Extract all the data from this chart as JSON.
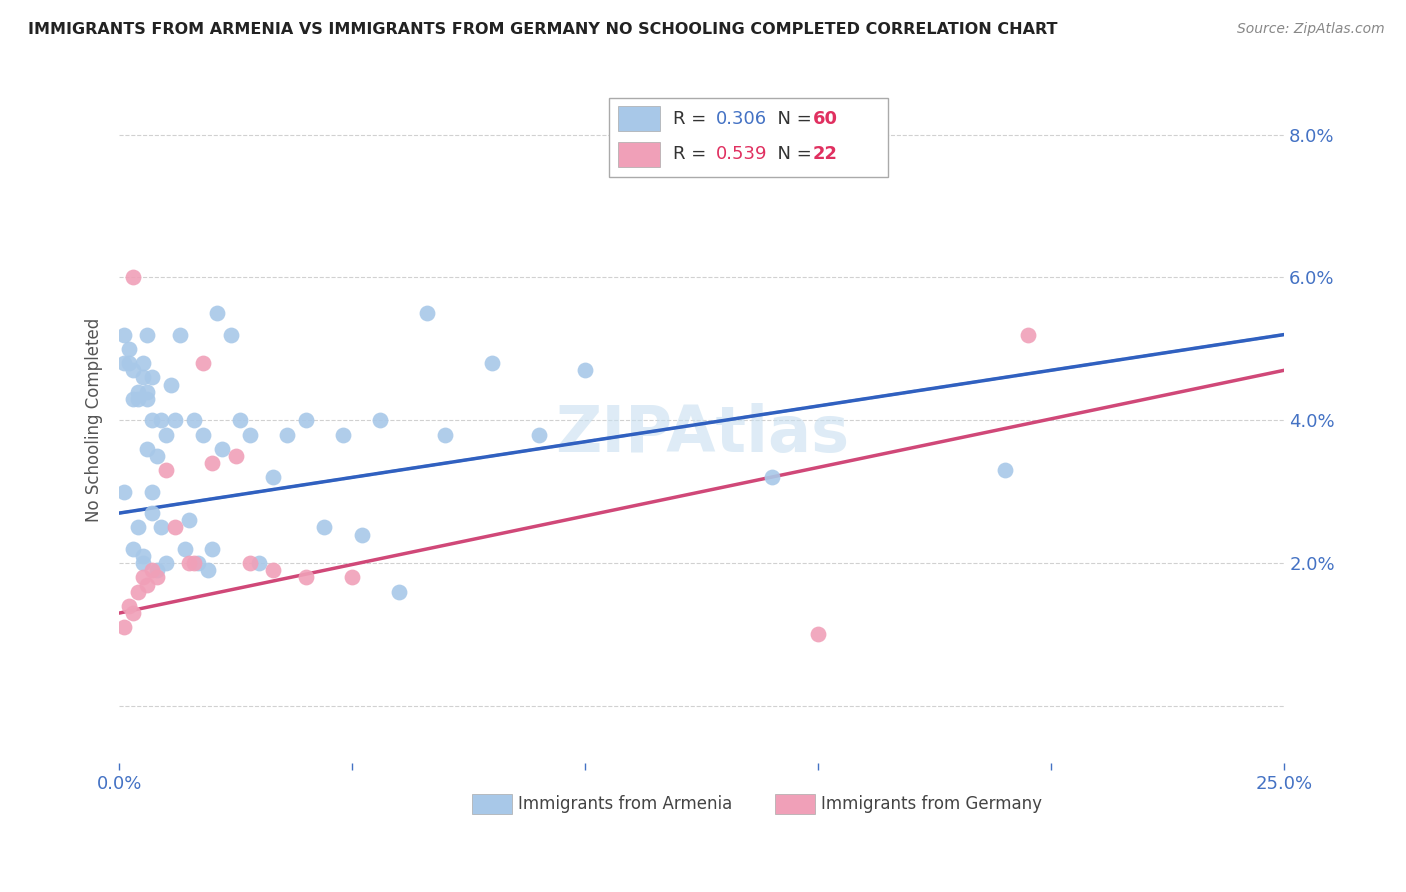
{
  "title": "IMMIGRANTS FROM ARMENIA VS IMMIGRANTS FROM GERMANY NO SCHOOLING COMPLETED CORRELATION CHART",
  "source": "Source: ZipAtlas.com",
  "ylabel": "No Schooling Completed",
  "xlim": [
    0.0,
    0.25
  ],
  "ylim": [
    -0.008,
    0.088
  ],
  "color_armenia": "#a8c8e8",
  "color_germany": "#f0a0b8",
  "color_trendline_armenia": "#3060c0",
  "color_trendline_germany": "#d04878",
  "color_text_blue": "#4472c4",
  "color_dashed": "#9ab8d8",
  "watermark_color": "#c8dff0",
  "legend_r1": "0.306",
  "legend_n1": "60",
  "legend_r2": "0.539",
  "legend_n2": "22",
  "armenia_x": [
    0.001,
    0.001,
    0.001,
    0.002,
    0.002,
    0.003,
    0.003,
    0.003,
    0.004,
    0.004,
    0.004,
    0.005,
    0.005,
    0.005,
    0.005,
    0.006,
    0.006,
    0.006,
    0.006,
    0.007,
    0.007,
    0.007,
    0.007,
    0.008,
    0.008,
    0.009,
    0.009,
    0.01,
    0.01,
    0.011,
    0.012,
    0.013,
    0.014,
    0.015,
    0.016,
    0.017,
    0.018,
    0.019,
    0.02,
    0.021,
    0.022,
    0.024,
    0.026,
    0.028,
    0.03,
    0.033,
    0.036,
    0.04,
    0.044,
    0.048,
    0.052,
    0.056,
    0.06,
    0.066,
    0.07,
    0.08,
    0.09,
    0.1,
    0.14,
    0.19
  ],
  "armenia_y": [
    0.03,
    0.048,
    0.052,
    0.05,
    0.048,
    0.047,
    0.043,
    0.022,
    0.044,
    0.043,
    0.025,
    0.048,
    0.046,
    0.021,
    0.02,
    0.043,
    0.052,
    0.044,
    0.036,
    0.046,
    0.03,
    0.04,
    0.027,
    0.035,
    0.019,
    0.04,
    0.025,
    0.038,
    0.02,
    0.045,
    0.04,
    0.052,
    0.022,
    0.026,
    0.04,
    0.02,
    0.038,
    0.019,
    0.022,
    0.055,
    0.036,
    0.052,
    0.04,
    0.038,
    0.02,
    0.032,
    0.038,
    0.04,
    0.025,
    0.038,
    0.024,
    0.04,
    0.016,
    0.055,
    0.038,
    0.048,
    0.038,
    0.047,
    0.032,
    0.033
  ],
  "germany_x": [
    0.001,
    0.002,
    0.003,
    0.003,
    0.004,
    0.005,
    0.006,
    0.007,
    0.008,
    0.01,
    0.012,
    0.015,
    0.016,
    0.018,
    0.02,
    0.025,
    0.028,
    0.033,
    0.04,
    0.05,
    0.15,
    0.195
  ],
  "germany_y": [
    0.011,
    0.014,
    0.013,
    0.06,
    0.016,
    0.018,
    0.017,
    0.019,
    0.018,
    0.033,
    0.025,
    0.02,
    0.02,
    0.048,
    0.034,
    0.035,
    0.02,
    0.019,
    0.018,
    0.018,
    0.01,
    0.052
  ],
  "trend_armenia_start_y": 0.027,
  "trend_armenia_end_y": 0.052,
  "trend_germany_start_y": 0.013,
  "trend_germany_end_y": 0.047
}
